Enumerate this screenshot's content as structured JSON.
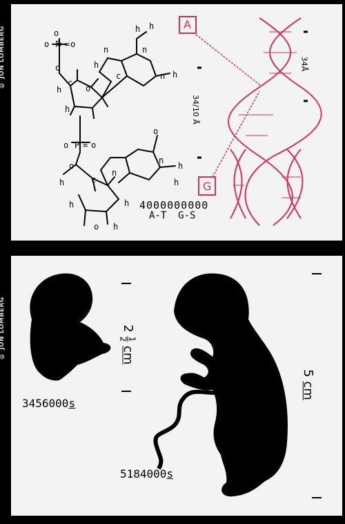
{
  "credit_top": "© JON LOMBERG",
  "credit_bottom": "© JON LOMBERG",
  "dna_panel": {
    "label_a": "A",
    "label_g": "G",
    "base_pairs": "4000000000",
    "pair_types": "A-T  G-S",
    "helix_pitch": "34",
    "helix_pitch_unit": "Å",
    "width_main": "34",
    "width_frac": "10",
    "width_unit": "Å",
    "highlight_color": "#d4305a"
  },
  "fetus_panel": {
    "small_time": "3456000",
    "small_unit": "s",
    "small_size_whole": "2",
    "small_size_num": "1",
    "small_size_den": "2",
    "small_size_unit": "cm",
    "large_time": "5184000",
    "large_unit": "s",
    "large_size": "5",
    "large_size_unit": "cm"
  }
}
